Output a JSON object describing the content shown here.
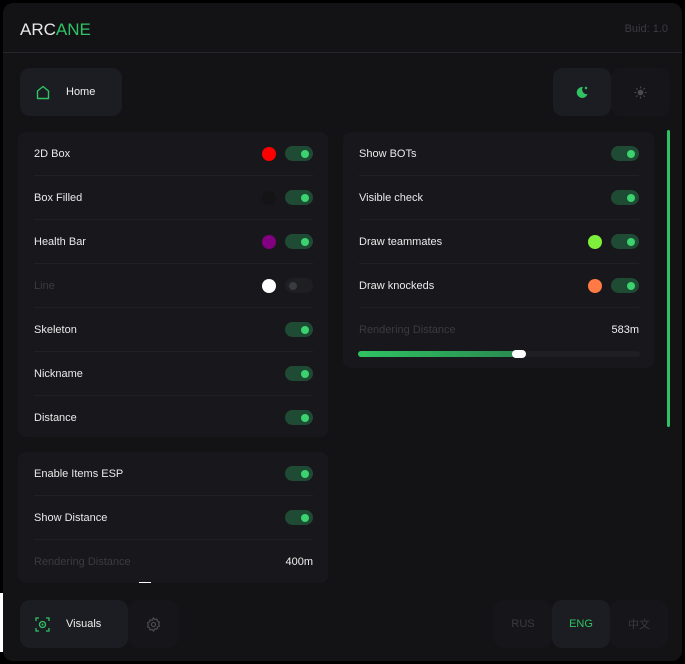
{
  "header": {
    "logo_a": "ARC",
    "logo_b": "ANE",
    "build": "Buid: 1.0"
  },
  "nav": {
    "home": "Home",
    "home_icon": "home-icon",
    "theme_dark_icon": "moon-icon",
    "theme_light_icon": "sun-icon"
  },
  "player_esp": {
    "items": [
      {
        "label": "2D Box",
        "color": "#ff0000",
        "enabled": true
      },
      {
        "label": "Box Filled",
        "color": "#141417",
        "enabled": true
      },
      {
        "label": "Health Bar",
        "color": "#800080",
        "enabled": true
      },
      {
        "label": "Line",
        "color": "#ffffff",
        "enabled": false
      },
      {
        "label": "Skeleton",
        "enabled": true
      },
      {
        "label": "Nickname",
        "enabled": true
      },
      {
        "label": "Distance",
        "enabled": true
      }
    ]
  },
  "items_esp": {
    "items": [
      {
        "label": "Enable Items ESP",
        "enabled": true
      },
      {
        "label": "Show Distance",
        "enabled": true
      }
    ],
    "rendering_label": "Rendering Distance",
    "rendering_value": "400m"
  },
  "other_esp": {
    "items": [
      {
        "label": "Show BOTs",
        "enabled": true
      },
      {
        "label": "Visible check",
        "enabled": true
      },
      {
        "label": "Draw teammates",
        "color": "#7ef03c",
        "enabled": true
      },
      {
        "label": "Draw knockeds",
        "color": "#ff7a45",
        "enabled": true
      }
    ],
    "rendering_label": "Rendering Distance",
    "rendering_value": "583m",
    "rendering_fraction": 0.57
  },
  "footer": {
    "visuals": "Visuals",
    "visuals_icon": "eye-scan-icon",
    "settings_icon": "gear-icon",
    "languages": [
      "RUS",
      "ENG",
      "中文"
    ],
    "active_language": "ENG"
  },
  "colors": {
    "accent": "#2fc363"
  }
}
